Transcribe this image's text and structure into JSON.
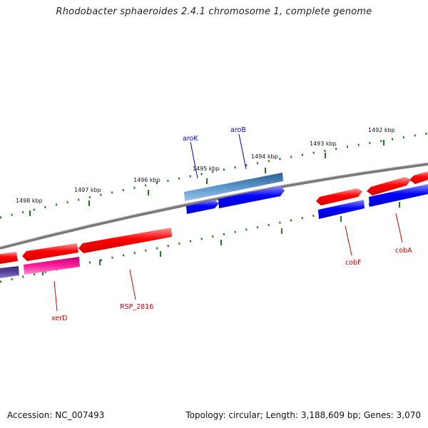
{
  "title": "Rhodobacter sphaeroides 2.4.1 chromosome 1, complete genome",
  "footer": {
    "accession": "Accession: NC_007493",
    "summary": "Topology: circular; Length: 3,188,609 bp; Genes: 3,070"
  },
  "ticks": [
    "1498 kbp",
    "1497 kbp",
    "1496 kbp",
    "1495 kbp",
    "1494 kbp",
    "1493 kbp",
    "1492 kbp"
  ],
  "genes": {
    "aroK": "aroK",
    "aroB": "aroB",
    "xerD": "xerD",
    "rsp2816": "RSP_2816",
    "cobF": "cobF",
    "cobA": "cobA"
  },
  "colors": {
    "forward_gene": "#ff0000",
    "reverse_gene": "#0000ff",
    "highlight_gene": "#4a86c0",
    "pink_gene": "#ff1f9a",
    "purple_gene": "#55449c",
    "backbone": "#7a7a7a",
    "tick": "#1f7a1f",
    "label_blue": "#0000cc",
    "label_red": "#cc0000"
  }
}
